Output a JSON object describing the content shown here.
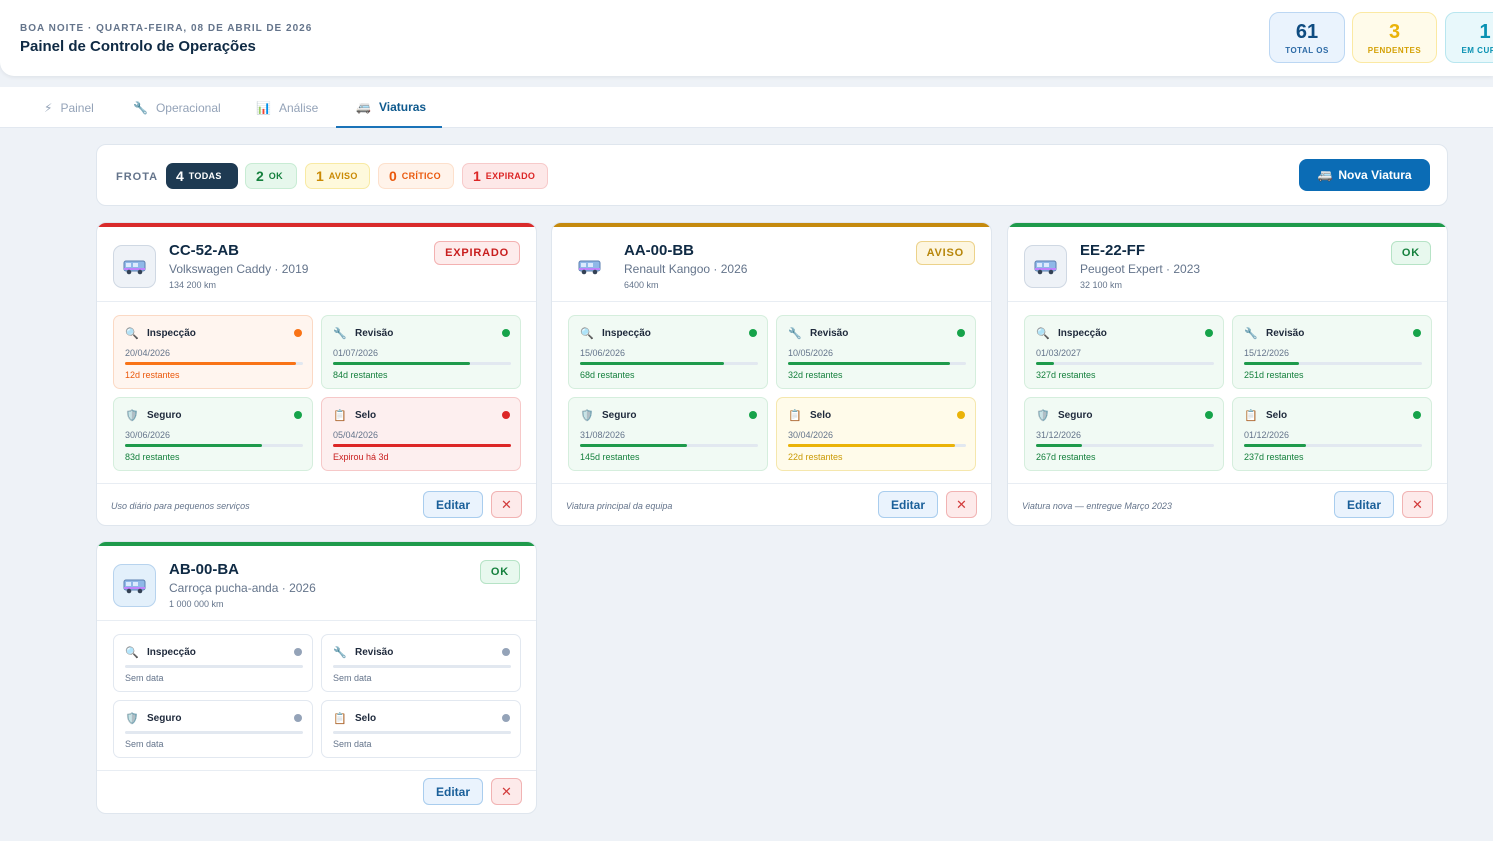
{
  "header": {
    "greeting": "BOA NOITE · QUARTA-FEIRA, 08 DE ABRIL DE 2026",
    "title": "Painel de Controlo de Operações",
    "stats": [
      {
        "value": "61",
        "label": "TOTAL OS"
      },
      {
        "value": "3",
        "label": "PENDENTES"
      },
      {
        "value": "1",
        "label": "EM CURSO"
      }
    ]
  },
  "tabs": [
    {
      "icon": "⚡",
      "label": "Painel"
    },
    {
      "icon": "🔧",
      "label": "Operacional"
    },
    {
      "icon": "📊",
      "label": "Análise"
    },
    {
      "icon": "🚐",
      "label": "Viaturas"
    }
  ],
  "fleet": {
    "label": "FROTA",
    "filters": [
      {
        "count": "4",
        "label": "TODAS"
      },
      {
        "count": "2",
        "label": "OK"
      },
      {
        "count": "1",
        "label": "AVISO"
      },
      {
        "count": "0",
        "label": "CRÍTICO"
      },
      {
        "count": "1",
        "label": "EXPIRADO"
      }
    ],
    "new_button": "Nova Viatura"
  },
  "colors": {
    "accent": "#0b6cb5",
    "ok": "#16a34a",
    "warning": "#eab308",
    "critical": "#f97316",
    "expired": "#dc2626",
    "none": "#94a3b8"
  },
  "vehicles": [
    {
      "plate": "CC-52-AB",
      "model": "Volkswagen Caddy · 2019",
      "km": "134 200 km",
      "status": "EXPIRADO",
      "note": "Uso diário para pequenos serviços",
      "edit": "Editar",
      "delete": "✕",
      "metrics": [
        {
          "icon": "🔍",
          "name": "Inspecção",
          "date": "20/04/2026",
          "remaining": "12d restantes",
          "progress": 0.96
        },
        {
          "icon": "🔧",
          "name": "Revisão",
          "date": "01/07/2026",
          "remaining": "84d restantes",
          "progress": 0.77
        },
        {
          "icon": "🛡️",
          "name": "Seguro",
          "date": "30/06/2026",
          "remaining": "83d restantes",
          "progress": 0.77
        },
        {
          "icon": "📋",
          "name": "Selo",
          "date": "05/04/2026",
          "remaining": "Expirou há 3d",
          "progress": 1.0
        }
      ]
    },
    {
      "plate": "AA-00-BB",
      "model": "Renault Kangoo · 2026",
      "km": "6400 km",
      "status": "AVISO",
      "note": "Viatura principal da equipa",
      "edit": "Editar",
      "delete": "✕",
      "metrics": [
        {
          "icon": "🔍",
          "name": "Inspecção",
          "date": "15/06/2026",
          "remaining": "68d restantes",
          "progress": 0.81
        },
        {
          "icon": "🔧",
          "name": "Revisão",
          "date": "10/05/2026",
          "remaining": "32d restantes",
          "progress": 0.91
        },
        {
          "icon": "🛡️",
          "name": "Seguro",
          "date": "31/08/2026",
          "remaining": "145d restantes",
          "progress": 0.6
        },
        {
          "icon": "📋",
          "name": "Selo",
          "date": "30/04/2026",
          "remaining": "22d restantes",
          "progress": 0.94
        }
      ]
    },
    {
      "plate": "EE-22-FF",
      "model": "Peugeot Expert · 2023",
      "km": "32 100 km",
      "status": "OK",
      "note": "Viatura nova — entregue Março 2023",
      "edit": "Editar",
      "delete": "✕",
      "metrics": [
        {
          "icon": "🔍",
          "name": "Inspecção",
          "date": "01/03/2027",
          "remaining": "327d restantes",
          "progress": 0.1
        },
        {
          "icon": "🔧",
          "name": "Revisão",
          "date": "15/12/2026",
          "remaining": "251d restantes",
          "progress": 0.31
        },
        {
          "icon": "🛡️",
          "name": "Seguro",
          "date": "31/12/2026",
          "remaining": "267d restantes",
          "progress": 0.26
        },
        {
          "icon": "📋",
          "name": "Selo",
          "date": "01/12/2026",
          "remaining": "237d restantes",
          "progress": 0.35
        }
      ]
    },
    {
      "plate": "AB-00-BA",
      "model": "Carroça pucha-anda · 2026",
      "km": "1 000 000 km",
      "status": "OK",
      "note": "",
      "edit": "Editar",
      "delete": "✕",
      "metrics": [
        {
          "icon": "🔍",
          "name": "Inspecção",
          "date": "Sem data"
        },
        {
          "icon": "🔧",
          "name": "Revisão",
          "date": "Sem data"
        },
        {
          "icon": "🛡️",
          "name": "Seguro",
          "date": "Sem data"
        },
        {
          "icon": "📋",
          "name": "Selo",
          "date": "Sem data"
        }
      ]
    }
  ]
}
